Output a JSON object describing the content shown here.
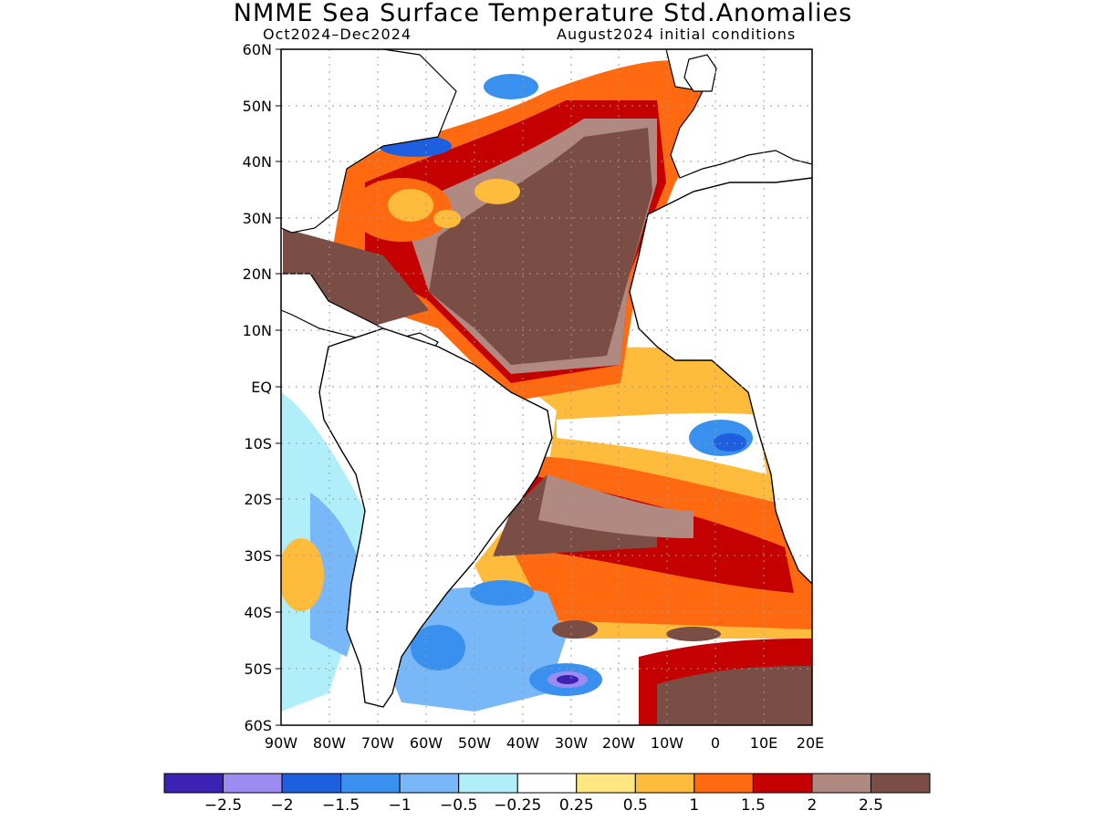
{
  "header": {
    "title": "NMME Sea Surface Temperature Std.Anomalies",
    "period": "Oct2024–Dec2024",
    "initial_conditions": "August2024 initial conditions"
  },
  "map": {
    "lat_labels": [
      "60N",
      "50N",
      "40N",
      "30N",
      "20N",
      "10N",
      "EQ",
      "10S",
      "20S",
      "30S",
      "40S",
      "50S",
      "60S"
    ],
    "lon_labels": [
      "90W",
      "80W",
      "70W",
      "60W",
      "50W",
      "40W",
      "30W",
      "20W",
      "10W",
      "0",
      "10E",
      "20E"
    ],
    "lat_range": [
      -60,
      60
    ],
    "lon_range": [
      -90,
      20
    ]
  },
  "colorbar": {
    "colors": [
      "#3b22b4",
      "#9c8cf2",
      "#1e5fe0",
      "#3a90ee",
      "#78b8f8",
      "#b0eefa",
      "#ffffff",
      "#ffe680",
      "#ffbb3c",
      "#ff6a10",
      "#c40000",
      "#b08a80",
      "#7a4e44"
    ],
    "labels": [
      "-2.5",
      "-2",
      "-1.5",
      "-1",
      "-0.5",
      "-0.25",
      "0.25",
      "0.5",
      "1",
      "1.5",
      "2",
      "2.5"
    ]
  }
}
